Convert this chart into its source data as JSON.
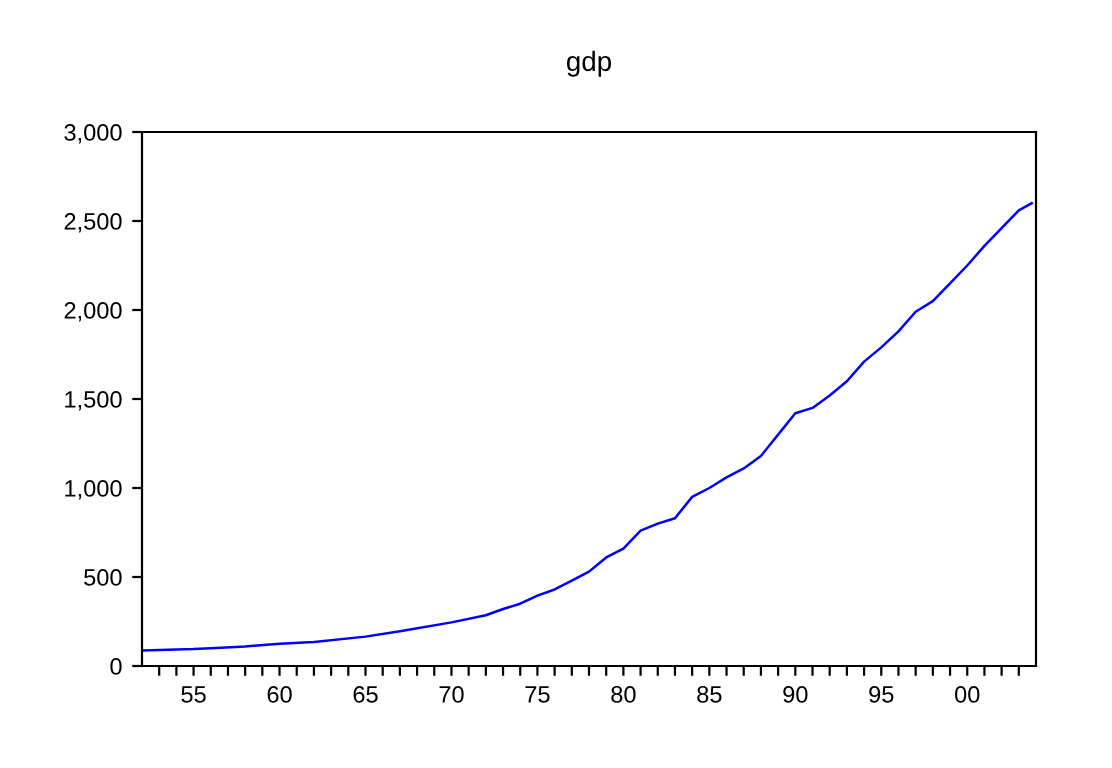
{
  "chart_data": {
    "type": "line",
    "title": "gdp",
    "grid": false,
    "legend": false,
    "marker": "none",
    "line_style": "solid",
    "x": [
      1952,
      1953,
      1954,
      1955,
      1956,
      1958,
      1960,
      1962,
      1965,
      1967,
      1970,
      1972,
      1973,
      1974,
      1975,
      1976,
      1977,
      1978,
      1979,
      1980,
      1981,
      1982,
      1983,
      1984,
      1985,
      1986,
      1987,
      1988,
      1989,
      1990,
      1991,
      1992,
      1993,
      1994,
      1995,
      1996,
      1997,
      1998,
      1999,
      2000,
      2001,
      2002,
      2003,
      2003.75
    ],
    "series": [
      {
        "color": "#0000ff",
        "values": [
          87,
          90,
          93,
          95,
          100,
          110,
          125,
          135,
          165,
          195,
          245,
          285,
          320,
          350,
          395,
          430,
          480,
          530,
          610,
          660,
          760,
          800,
          830,
          950,
          1000,
          1060,
          1110,
          1180,
          1300,
          1420,
          1450,
          1520,
          1600,
          1710,
          1790,
          1880,
          1990,
          2050,
          2150,
          2250,
          2360,
          2460,
          2560,
          2600
        ]
      }
    ],
    "xlim": [
      1952,
      2004
    ],
    "xticks": [
      {
        "value": 1953,
        "label": null
      },
      {
        "value": 1954,
        "label": null
      },
      {
        "value": 1955,
        "label": "55"
      },
      {
        "value": 1956,
        "label": null
      },
      {
        "value": 1957,
        "label": null
      },
      {
        "value": 1958,
        "label": null
      },
      {
        "value": 1959,
        "label": null
      },
      {
        "value": 1960,
        "label": "60"
      },
      {
        "value": 1961,
        "label": null
      },
      {
        "value": 1962,
        "label": null
      },
      {
        "value": 1963,
        "label": null
      },
      {
        "value": 1964,
        "label": null
      },
      {
        "value": 1965,
        "label": "65"
      },
      {
        "value": 1966,
        "label": null
      },
      {
        "value": 1967,
        "label": null
      },
      {
        "value": 1968,
        "label": null
      },
      {
        "value": 1969,
        "label": null
      },
      {
        "value": 1970,
        "label": "70"
      },
      {
        "value": 1971,
        "label": null
      },
      {
        "value": 1972,
        "label": null
      },
      {
        "value": 1973,
        "label": null
      },
      {
        "value": 1974,
        "label": null
      },
      {
        "value": 1975,
        "label": "75"
      },
      {
        "value": 1976,
        "label": null
      },
      {
        "value": 1977,
        "label": null
      },
      {
        "value": 1978,
        "label": null
      },
      {
        "value": 1979,
        "label": null
      },
      {
        "value": 1980,
        "label": "80"
      },
      {
        "value": 1981,
        "label": null
      },
      {
        "value": 1982,
        "label": null
      },
      {
        "value": 1983,
        "label": null
      },
      {
        "value": 1984,
        "label": null
      },
      {
        "value": 1985,
        "label": "85"
      },
      {
        "value": 1986,
        "label": null
      },
      {
        "value": 1987,
        "label": null
      },
      {
        "value": 1988,
        "label": null
      },
      {
        "value": 1989,
        "label": null
      },
      {
        "value": 1990,
        "label": "90"
      },
      {
        "value": 1991,
        "label": null
      },
      {
        "value": 1992,
        "label": null
      },
      {
        "value": 1993,
        "label": null
      },
      {
        "value": 1994,
        "label": null
      },
      {
        "value": 1995,
        "label": "95"
      },
      {
        "value": 1996,
        "label": null
      },
      {
        "value": 1997,
        "label": null
      },
      {
        "value": 1998,
        "label": null
      },
      {
        "value": 1999,
        "label": null
      },
      {
        "value": 2000,
        "label": "00"
      },
      {
        "value": 2001,
        "label": null
      },
      {
        "value": 2002,
        "label": null
      },
      {
        "value": 2003,
        "label": null
      }
    ],
    "ylim": [
      0,
      3000
    ],
    "yticks": [
      {
        "value": 0,
        "label": "0"
      },
      {
        "value": 500,
        "label": "500"
      },
      {
        "value": 1000,
        "label": "1,000"
      },
      {
        "value": 1500,
        "label": "1,500"
      },
      {
        "value": 2000,
        "label": "2,000"
      },
      {
        "value": 2500,
        "label": "2,500"
      },
      {
        "value": 3000,
        "label": "3,000"
      }
    ]
  }
}
